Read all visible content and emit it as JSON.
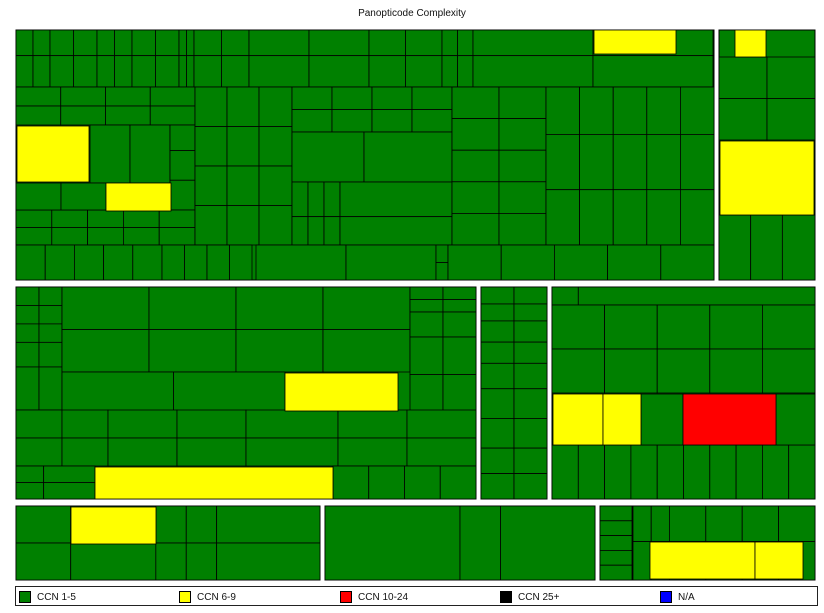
{
  "chart_data": {
    "type": "treemap",
    "title": "Panopticode Complexity",
    "colors": {
      "CCN 1-5": "#008000",
      "CCN 6-9": "#ffff00",
      "CCN 10-24": "#ff0000",
      "CCN 25+": "#000000",
      "N/A": "#0000ff"
    },
    "legend": [
      {
        "label": "CCN 1-5",
        "color": "#008000"
      },
      {
        "label": "CCN 6-9",
        "color": "#ffff00"
      },
      {
        "label": "CCN 10-24",
        "color": "#ff0000"
      },
      {
        "label": "CCN 25+",
        "color": "#000000"
      },
      {
        "label": "N/A",
        "color": "#0000ff"
      }
    ],
    "legend_position": "bottom",
    "category_counts": {
      "CCN 1-5": 420,
      "CCN 6-9": 13,
      "CCN 10-24": 1,
      "CCN 25+": 0,
      "N/A": 0
    }
  }
}
